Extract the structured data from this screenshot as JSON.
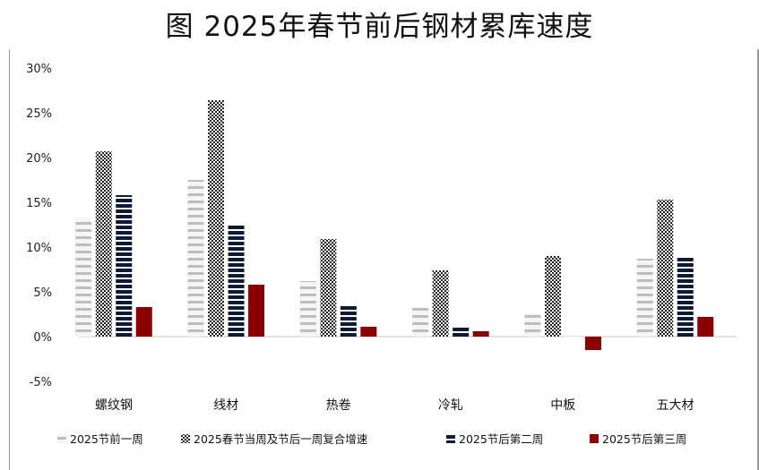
{
  "chart_data": {
    "type": "bar",
    "title": "图  2025年春节前后钢材累库速度",
    "xlabel": "",
    "ylabel": "",
    "ylim": [
      -5,
      30
    ],
    "yticks": [
      "-5%",
      "0%",
      "5%",
      "10%",
      "15%",
      "20%",
      "25%",
      "30%"
    ],
    "ytick_values": [
      -5,
      0,
      5,
      10,
      15,
      20,
      25,
      30
    ],
    "grid": false,
    "legend_position": "bottom",
    "categories": [
      "螺纹钢",
      "线材",
      "热卷",
      "冷轧",
      "中板",
      "五大材"
    ],
    "series": [
      {
        "name": "2025节前一周",
        "color": "#bdbdbd",
        "pattern": "light-horizontal",
        "values": [
          13.3,
          17.5,
          6.2,
          3.3,
          2.6,
          8.7
        ]
      },
      {
        "name": "2025春节当周及节后一周复合增速",
        "color": "#333333",
        "pattern": "checker",
        "values": [
          20.7,
          26.4,
          10.9,
          7.4,
          9.0,
          15.3
        ]
      },
      {
        "name": "2025节后第二周",
        "color": "#0d1a33",
        "pattern": "dark-horizontal",
        "values": [
          15.8,
          12.6,
          3.6,
          1.0,
          -0.2,
          9.0
        ]
      },
      {
        "name": "2025节后第三周",
        "color": "#8b0000",
        "pattern": "solid",
        "values": [
          3.3,
          5.8,
          1.1,
          0.6,
          -1.5,
          2.2
        ]
      }
    ]
  }
}
